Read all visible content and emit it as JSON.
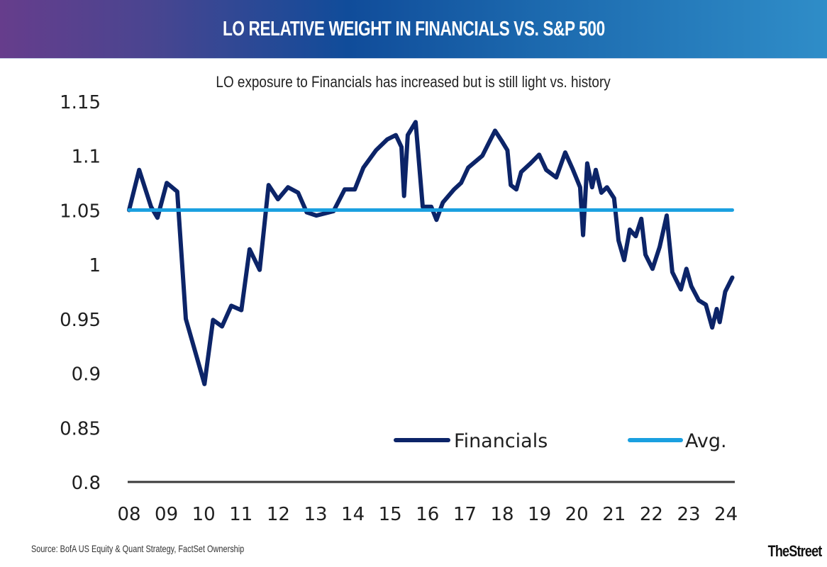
{
  "header": {
    "title": "LO RELATIVE WEIGHT IN FINANCIALS VS. S&P 500"
  },
  "footer": {
    "source": "Source: BofA US Equity & Quant Strategy, FactSet Ownership",
    "brand": "TheStreet"
  },
  "colors": {
    "financials": "#0c2468",
    "avg": "#1aa0e0",
    "axis": "#3a3a3a"
  },
  "chart_data": {
    "type": "line",
    "title": "LO RELATIVE WEIGHT IN FINANCIALS VS. S&P 500",
    "subtitle": "LO exposure to Financials has increased but is still light vs. history",
    "xlabel": "",
    "ylabel": "",
    "ylim": [
      0.8,
      1.15
    ],
    "xlim": [
      2008,
      2024.2
    ],
    "yticks": [
      "1.15",
      "1.1",
      "1.05",
      "1",
      "0.95",
      "0.9",
      "0.85",
      "0.8"
    ],
    "ytick_values": [
      1.15,
      1.1,
      1.05,
      1.0,
      0.95,
      0.9,
      0.85,
      0.8
    ],
    "xticks": [
      "08",
      "09",
      "10",
      "11",
      "12",
      "13",
      "14",
      "15",
      "16",
      "17",
      "18",
      "19",
      "20",
      "21",
      "22",
      "23",
      "24"
    ],
    "xtick_values": [
      2008,
      2009,
      2010,
      2011,
      2012,
      2013,
      2014,
      2015,
      2016,
      2017,
      2018,
      2019,
      2020,
      2021,
      2022,
      2023,
      2024
    ],
    "grid": false,
    "legend": {
      "placement": "bottom-right",
      "entries": [
        "Financials",
        "Avg."
      ]
    },
    "series": [
      {
        "name": "Financials",
        "x": [
          2008.0,
          2008.27,
          2008.59,
          2008.76,
          2009.01,
          2009.29,
          2009.52,
          2010.02,
          2010.25,
          2010.49,
          2010.74,
          2011.01,
          2011.23,
          2011.5,
          2011.74,
          2011.99,
          2012.26,
          2012.53,
          2012.76,
          2013.02,
          2013.48,
          2013.78,
          2014.05,
          2014.28,
          2014.62,
          2014.92,
          2015.15,
          2015.3,
          2015.37,
          2015.47,
          2015.68,
          2015.87,
          2016.1,
          2016.24,
          2016.41,
          2016.71,
          2016.9,
          2017.09,
          2017.47,
          2017.66,
          2017.81,
          2018.0,
          2018.14,
          2018.23,
          2018.38,
          2018.51,
          2018.76,
          2018.99,
          2019.18,
          2019.45,
          2019.69,
          2019.9,
          2020.09,
          2020.17,
          2020.28,
          2020.41,
          2020.51,
          2020.66,
          2020.81,
          2021.0,
          2021.12,
          2021.27,
          2021.42,
          2021.58,
          2021.73,
          2021.84,
          2022.03,
          2022.22,
          2022.41,
          2022.56,
          2022.79,
          2022.94,
          2023.07,
          2023.27,
          2023.46,
          2023.63,
          2023.75,
          2023.83,
          2023.98,
          2024.17
        ],
        "values": [
          1.05,
          1.087,
          1.053,
          1.043,
          1.075,
          1.067,
          0.95,
          0.89,
          0.949,
          0.943,
          0.962,
          0.958,
          1.014,
          0.995,
          1.073,
          1.06,
          1.071,
          1.066,
          1.048,
          1.045,
          1.049,
          1.069,
          1.069,
          1.089,
          1.105,
          1.115,
          1.119,
          1.108,
          1.063,
          1.119,
          1.131,
          1.053,
          1.053,
          1.041,
          1.057,
          1.069,
          1.075,
          1.089,
          1.1,
          1.113,
          1.123,
          1.113,
          1.105,
          1.073,
          1.069,
          1.085,
          1.093,
          1.101,
          1.087,
          1.08,
          1.103,
          1.087,
          1.071,
          1.027,
          1.093,
          1.071,
          1.087,
          1.066,
          1.071,
          1.061,
          1.022,
          1.004,
          1.032,
          1.026,
          1.042,
          1.009,
          0.996,
          1.016,
          1.045,
          0.993,
          0.977,
          0.996,
          0.98,
          0.967,
          0.963,
          0.942,
          0.959,
          0.947,
          0.975,
          0.988
        ]
      },
      {
        "name": "Avg.",
        "x": [
          2008.0,
          2024.17
        ],
        "values": [
          1.05,
          1.05
        ]
      }
    ]
  }
}
